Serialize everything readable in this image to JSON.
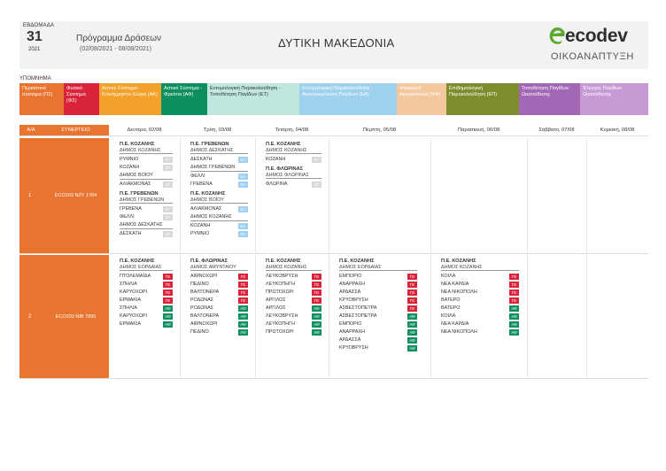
{
  "header": {
    "week_label": "ΕΒΔΟΜΑΔΑ",
    "week_number": "31",
    "year": "2021",
    "title": "Πρόγραμμα Δράσεων",
    "dates": "(02/08/2021 - 08/08/2021)",
    "region": "ΔΥΤΙΚΗ ΜΑΚΕΔΟΝΙΑ",
    "logo_word": "ecodev",
    "logo_sub": "ΟΙΚΟΑΝΑΠΤΥΞΗ",
    "logo_icon": "leaf-e-icon"
  },
  "legend": {
    "title": "ΥΠΟΜΝΗΜΑ",
    "items": [
      {
        "label": "Περιαστικό σύστημα (ΠΣ)",
        "color": "#e9742f"
      },
      {
        "label": "Φυσικό Σύστημα (ΦΣ)",
        "color": "#d9243a"
      },
      {
        "label": "Αστικό Σύστημα - Κοινόχρηστοι Χώροι (ΑΚ)",
        "color": "#f2a12a"
      },
      {
        "label": "Αστικό Σύστημα - Φρεάτια (ΑΦ)",
        "color": "#0e8f60"
      },
      {
        "label": "Εντομολογική Παρακολούθηση - Τοποθέτηση Παγίδων (ΕΤ)",
        "color": "#bfe6df"
      },
      {
        "label": "Εντομολογική Παρακολούθηση - Ανασυγκρότηση Παγίδων (ΕΑ)",
        "color": "#9fd1ee"
      },
      {
        "label": "Ψεκασμοί Αεροκοπτικοί (ΨΑ)",
        "color": "#f3c89f"
      },
      {
        "label": "Επιδημιολογική Παρακολούθηση (ΕΠ)",
        "color": "#7f8d2e"
      },
      {
        "label": "Τοποθέτηση Παγίδων Ωοαπόθεσης",
        "color": "#a267b5"
      },
      {
        "label": "Έλεγχος Παγίδων Ωοαπόθεσης",
        "color": "#c79ad6"
      }
    ]
  },
  "table": {
    "headers": [
      "Α/Α",
      "ΣΥΝΕΡΓΕΙΟ",
      "Δευτέρα, 02/08",
      "Τρίτη, 03/08",
      "Τετάρτη, 04/08",
      "Πέμπτη, 05/08",
      "Παρασκευή, 06/08",
      "Σάββατο, 07/08",
      "Κυριακή, 08/08"
    ],
    "rows": [
      {
        "aa": "1",
        "team": "ECO203 ΝΖΥ 1764",
        "days": [
          [
            {
              "h1": "Π.Ε. ΚΟΖΑΝΗΣ",
              "h2": "ΔΗΜΟΣ ΚΟΖΑΝΗΣ",
              "items": [
                [
                  "ΡΥΜΝΙΟ",
                  "ΕΤ",
                  "te"
                ],
                [
                  "ΚΟΖΑΝΗ",
                  "ΕΤ",
                  "te"
                ],
                [
                  "ΔΗΜΟΣ ΒΟΪΟΥ",
                  "",
                  ""
                ],
                [
                  "ΑΛΙΑΚΜΟΝΑΣ",
                  "ΕΤ",
                  "te"
                ]
              ]
            },
            {
              "h1": "Π.Ε. ΓΡΕΒΕΝΩΝ",
              "h2": "ΔΗΜΟΣ ΓΡΕΒΕΝΩΝ",
              "items": [
                [
                  "ΓΡΕΒΕΝΑ",
                  "ΕΤ",
                  "te"
                ],
                [
                  "ΦΕΛΛΙ",
                  "ΕΤ",
                  "te"
                ],
                [
                  "ΔΗΜΟΣ ΔΕΣΚΑΤΗΣ",
                  "",
                  ""
                ],
                [
                  "ΔΕΣΚΑΤΗ",
                  "ΕΤ",
                  "te"
                ]
              ]
            }
          ],
          [
            {
              "h1": "Π.Ε. ΓΡΕΒΕΝΩΝ",
              "h2": "ΔΗΜΟΣ ΔΕΣΚΑΤΗΣ",
              "items": [
                [
                  "ΔΕΣΚΑΤΗ",
                  "ΕΑ",
                  "ea"
                ],
                [
                  "ΔΗΜΟΣ ΓΡΕΒΕΝΩΝ",
                  "",
                  ""
                ],
                [
                  "ΦΕΛΛΙ",
                  "ΕΑ",
                  "ea"
                ],
                [
                  "ΓΡΕΒΕΝΑ",
                  "ΕΑ",
                  "ea"
                ]
              ]
            },
            {
              "h1": "Π.Ε. ΚΟΖΑΝΗΣ",
              "h2": "ΔΗΜΟΣ ΒΟΪΟΥ",
              "items": [
                [
                  "ΑΛΙΑΚΜΟΝΑΣ",
                  "ΕΑ",
                  "ea"
                ],
                [
                  "ΔΗΜΟΣ ΚΟΖΑΝΗΣ",
                  "",
                  ""
                ],
                [
                  "ΚΟΖΑΝΗ",
                  "ΕΑ",
                  "ea"
                ],
                [
                  "ΡΥΜΝΙΟ",
                  "ΕΑ",
                  "ea"
                ]
              ]
            }
          ],
          [
            {
              "h1": "Π.Ε. ΚΟΖΑΝΗΣ",
              "h2": "ΔΗΜΟΣ ΚΟΖΑΝΗΣ",
              "items": [
                [
                  "ΚΟΖΑΝΗ",
                  "ΕΤ",
                  "te"
                ]
              ]
            },
            {
              "h1": "Π.Ε. ΦΛΩΡΙΝΑΣ",
              "h2": "ΔΗΜΟΣ ΦΛΩΡΙΝΑΣ",
              "items": [
                [
                  "ΦΛΩΡΙΝΑ",
                  "ΕΤ",
                  "te"
                ]
              ]
            }
          ],
          [],
          [],
          [],
          []
        ]
      },
      {
        "aa": "2",
        "team": "ECO203 ΝΙΒ 7895",
        "days": [
          [
            {
              "h1": "Π.Ε. ΚΟΖΑΝΗΣ",
              "h2": "ΔΗΜΟΣ ΕΟΡΔΑΙΑΣ",
              "items": [
                [
                  "ΠΤΟΛΕΜΑΪΔΑ",
                  "ΓΕ",
                  "ge"
                ],
                [
                  "ΣΠΗΛΙΑ",
                  "ΓΕ",
                  "ge"
                ],
                [
                  "ΚΑΡΥΟΧΩΡΙ",
                  "ΓΕ",
                  "ge"
                ],
                [
                  "ΕΡΜΑΚΙΑ",
                  "ΓΕ",
                  "ge"
                ],
                [
                  "ΣΠΗΛΙΑ",
                  "ΑΦ",
                  "ad"
                ],
                [
                  "ΚΑΡΥΟΧΩΡΙ",
                  "ΑΦ",
                  "ad"
                ],
                [
                  "ΕΡΜΑΚΙΑ",
                  "ΑΦ",
                  "ad"
                ]
              ]
            }
          ],
          [
            {
              "h1": "Π.Ε. ΦΛΩΡΙΝΑΣ",
              "h2": "ΔΗΜΟΣ ΑΜΥΝΤΑΙΟΥ",
              "items": [
                [
                  "ΑΙΜΝΟΧΩΡΙ",
                  "ΓΕ",
                  "ge"
                ],
                [
                  "ΠΕΔΙΝΟ",
                  "ΓΕ",
                  "ge"
                ],
                [
                  "ΒΑΛΤΟΝΕΡΑ",
                  "ΓΕ",
                  "ge"
                ],
                [
                  "ΡΟΔΩΝΑΣ",
                  "ΓΕ",
                  "ge"
                ],
                [
                  "ΡΟΔΩΝΑΣ",
                  "ΑΦ",
                  "ad"
                ],
                [
                  "ΒΑΛΤΟΝΕΡΑ",
                  "ΑΦ",
                  "ad"
                ],
                [
                  "ΑΙΜΝΟΧΩΡΙ",
                  "ΑΦ",
                  "ad"
                ],
                [
                  "ΠΕΔΙΝΟ",
                  "ΑΦ",
                  "ad"
                ]
              ]
            }
          ],
          [
            {
              "h1": "Π.Ε. ΚΟΖΑΝΗΣ",
              "h2": "ΔΗΜΟΣ ΚΟΖΑΝΗΣ",
              "items": [
                [
                  "ΛΕΥΚΟΒΡΥΣΗ",
                  "ΓΕ",
                  "ge"
                ],
                [
                  "ΛΕΥΚΟΠΗΓΗ",
                  "ΓΕ",
                  "ge"
                ],
                [
                  "ΠΡΩΤΟΧΩΡΙ",
                  "ΓΕ",
                  "ge"
                ],
                [
                  "ΑΡΓΙΛΟΣ",
                  "ΓΕ",
                  "ge"
                ],
                [
                  "ΑΡΓΙΛΟΣ",
                  "ΑΦ",
                  "ad"
                ],
                [
                  "ΛΕΥΚΟΒΡΥΣΗ",
                  "ΑΦ",
                  "ad"
                ],
                [
                  "ΛΕΥΚΟΠΗΓΗ",
                  "ΑΦ",
                  "ad"
                ],
                [
                  "ΠΡΩΤΟΧΩΡΙ",
                  "ΑΦ",
                  "ad"
                ]
              ]
            }
          ],
          [
            {
              "h1": "Π.Ε. ΚΟΖΑΝΗΣ",
              "h2": "ΔΗΜΟΣ ΕΟΡΔΑΙΑΣ",
              "items": [
                [
                  "ΕΜΠΟΡΙΟ",
                  "ΓΕ",
                  "ge"
                ],
                [
                  "ΑΝΑΡΡΑΧΗ",
                  "ΓΕ",
                  "ge"
                ],
                [
                  "ΑΡΔΑΣΣΑ",
                  "ΓΕ",
                  "ge"
                ],
                [
                  "ΚΡΥΟΒΡΥΣΗ",
                  "ΓΕ",
                  "ge"
                ],
                [
                  "ΑΣΒΕΣΤΟΠΕΤΡΑ",
                  "ΓΕ",
                  "ge"
                ],
                [
                  "ΑΣΒΕΣΤΟΠΕΤΡΑ",
                  "ΑΦ",
                  "ad"
                ],
                [
                  "ΕΜΠΟΡΙΟ",
                  "ΑΦ",
                  "ad"
                ],
                [
                  "ΑΝΑΡΡΑΧΗ",
                  "ΑΦ",
                  "ad"
                ],
                [
                  "ΑΡΔΑΣΣΑ",
                  "ΑΦ",
                  "ad"
                ],
                [
                  "ΚΡΥΟΒΡΥΣΗ",
                  "ΑΦ",
                  "ad"
                ]
              ]
            }
          ],
          [
            {
              "h1": "Π.Ε. ΚΟΖΑΝΗΣ",
              "h2": "ΔΗΜΟΣ ΚΟΖΑΝΗΣ",
              "items": [
                [
                  "ΚΟΙΛΑ",
                  "ΓΕ",
                  "ge"
                ],
                [
                  "ΝΕΑ ΚΑΡΔΙΑ",
                  "ΓΕ",
                  "ge"
                ],
                [
                  "ΝΕΑ ΝΙΚΟΠΟΛΗ",
                  "ΓΕ",
                  "ge"
                ],
                [
                  "ΒΑΤΕΡΟ",
                  "ΓΕ",
                  "ge"
                ],
                [
                  "ΒΑΤΕΡΟ",
                  "ΑΦ",
                  "ad"
                ],
                [
                  "ΚΟΙΛΑ",
                  "ΑΦ",
                  "ad"
                ],
                [
                  "ΝΕΑ ΚΑΡΔΙΑ",
                  "ΑΦ",
                  "ad"
                ],
                [
                  "ΝΕΑ ΝΙΚΟΠΟΛΗ",
                  "ΑΦ",
                  "ad"
                ]
              ]
            }
          ],
          [],
          []
        ]
      }
    ]
  }
}
